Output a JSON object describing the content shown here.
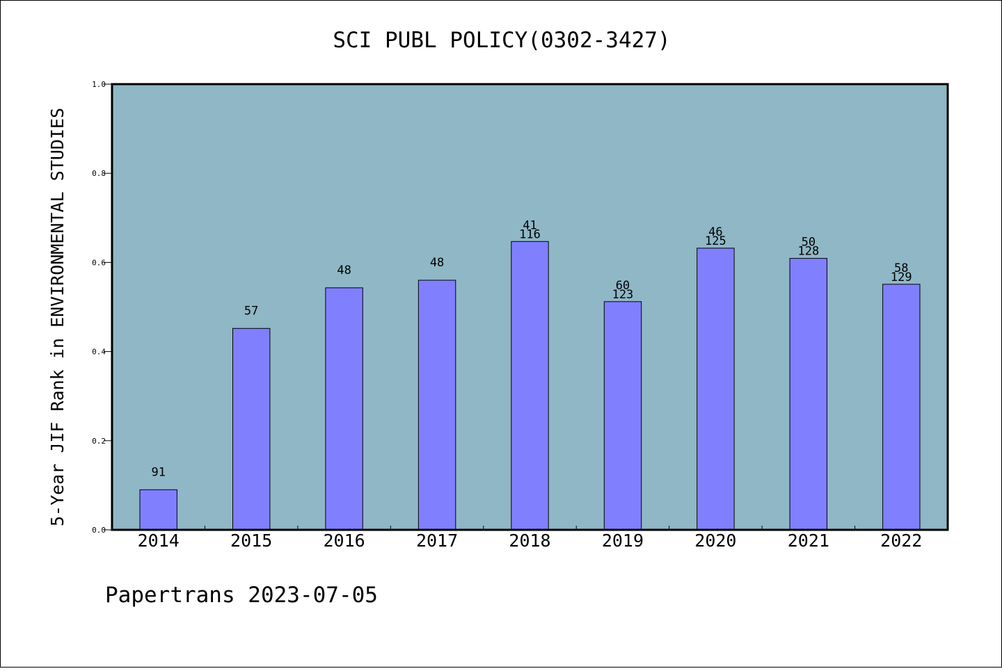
{
  "chart_data": {
    "type": "bar",
    "title": "SCI PUBL POLICY(0302-3427)",
    "ylabel": "5-Year JIF Rank in ENVIRONMENTAL STUDIES",
    "xlabel": "",
    "ylim": [
      0.0,
      1.0
    ],
    "yticks": [
      "0.0",
      "0.2",
      "0.4",
      "0.6",
      "0.8",
      "1.0"
    ],
    "categories": [
      "2014",
      "2015",
      "2016",
      "2017",
      "2018",
      "2019",
      "2020",
      "2021",
      "2022"
    ],
    "values": [
      0.09,
      0.452,
      0.543,
      0.56,
      0.647,
      0.512,
      0.632,
      0.609,
      0.551
    ],
    "rank_labels": [
      "91",
      "57",
      "48",
      "48",
      "41",
      "60",
      "46",
      "50",
      "58"
    ],
    "total_labels": [
      "",
      "",
      "",
      "",
      "116",
      "123",
      "125",
      "128",
      "129"
    ],
    "colors": {
      "plot_bg": "#8fb7c6",
      "bar": "#8080ff"
    },
    "grid": false,
    "legend": "none"
  },
  "footer": "Papertrans 2023-07-05"
}
